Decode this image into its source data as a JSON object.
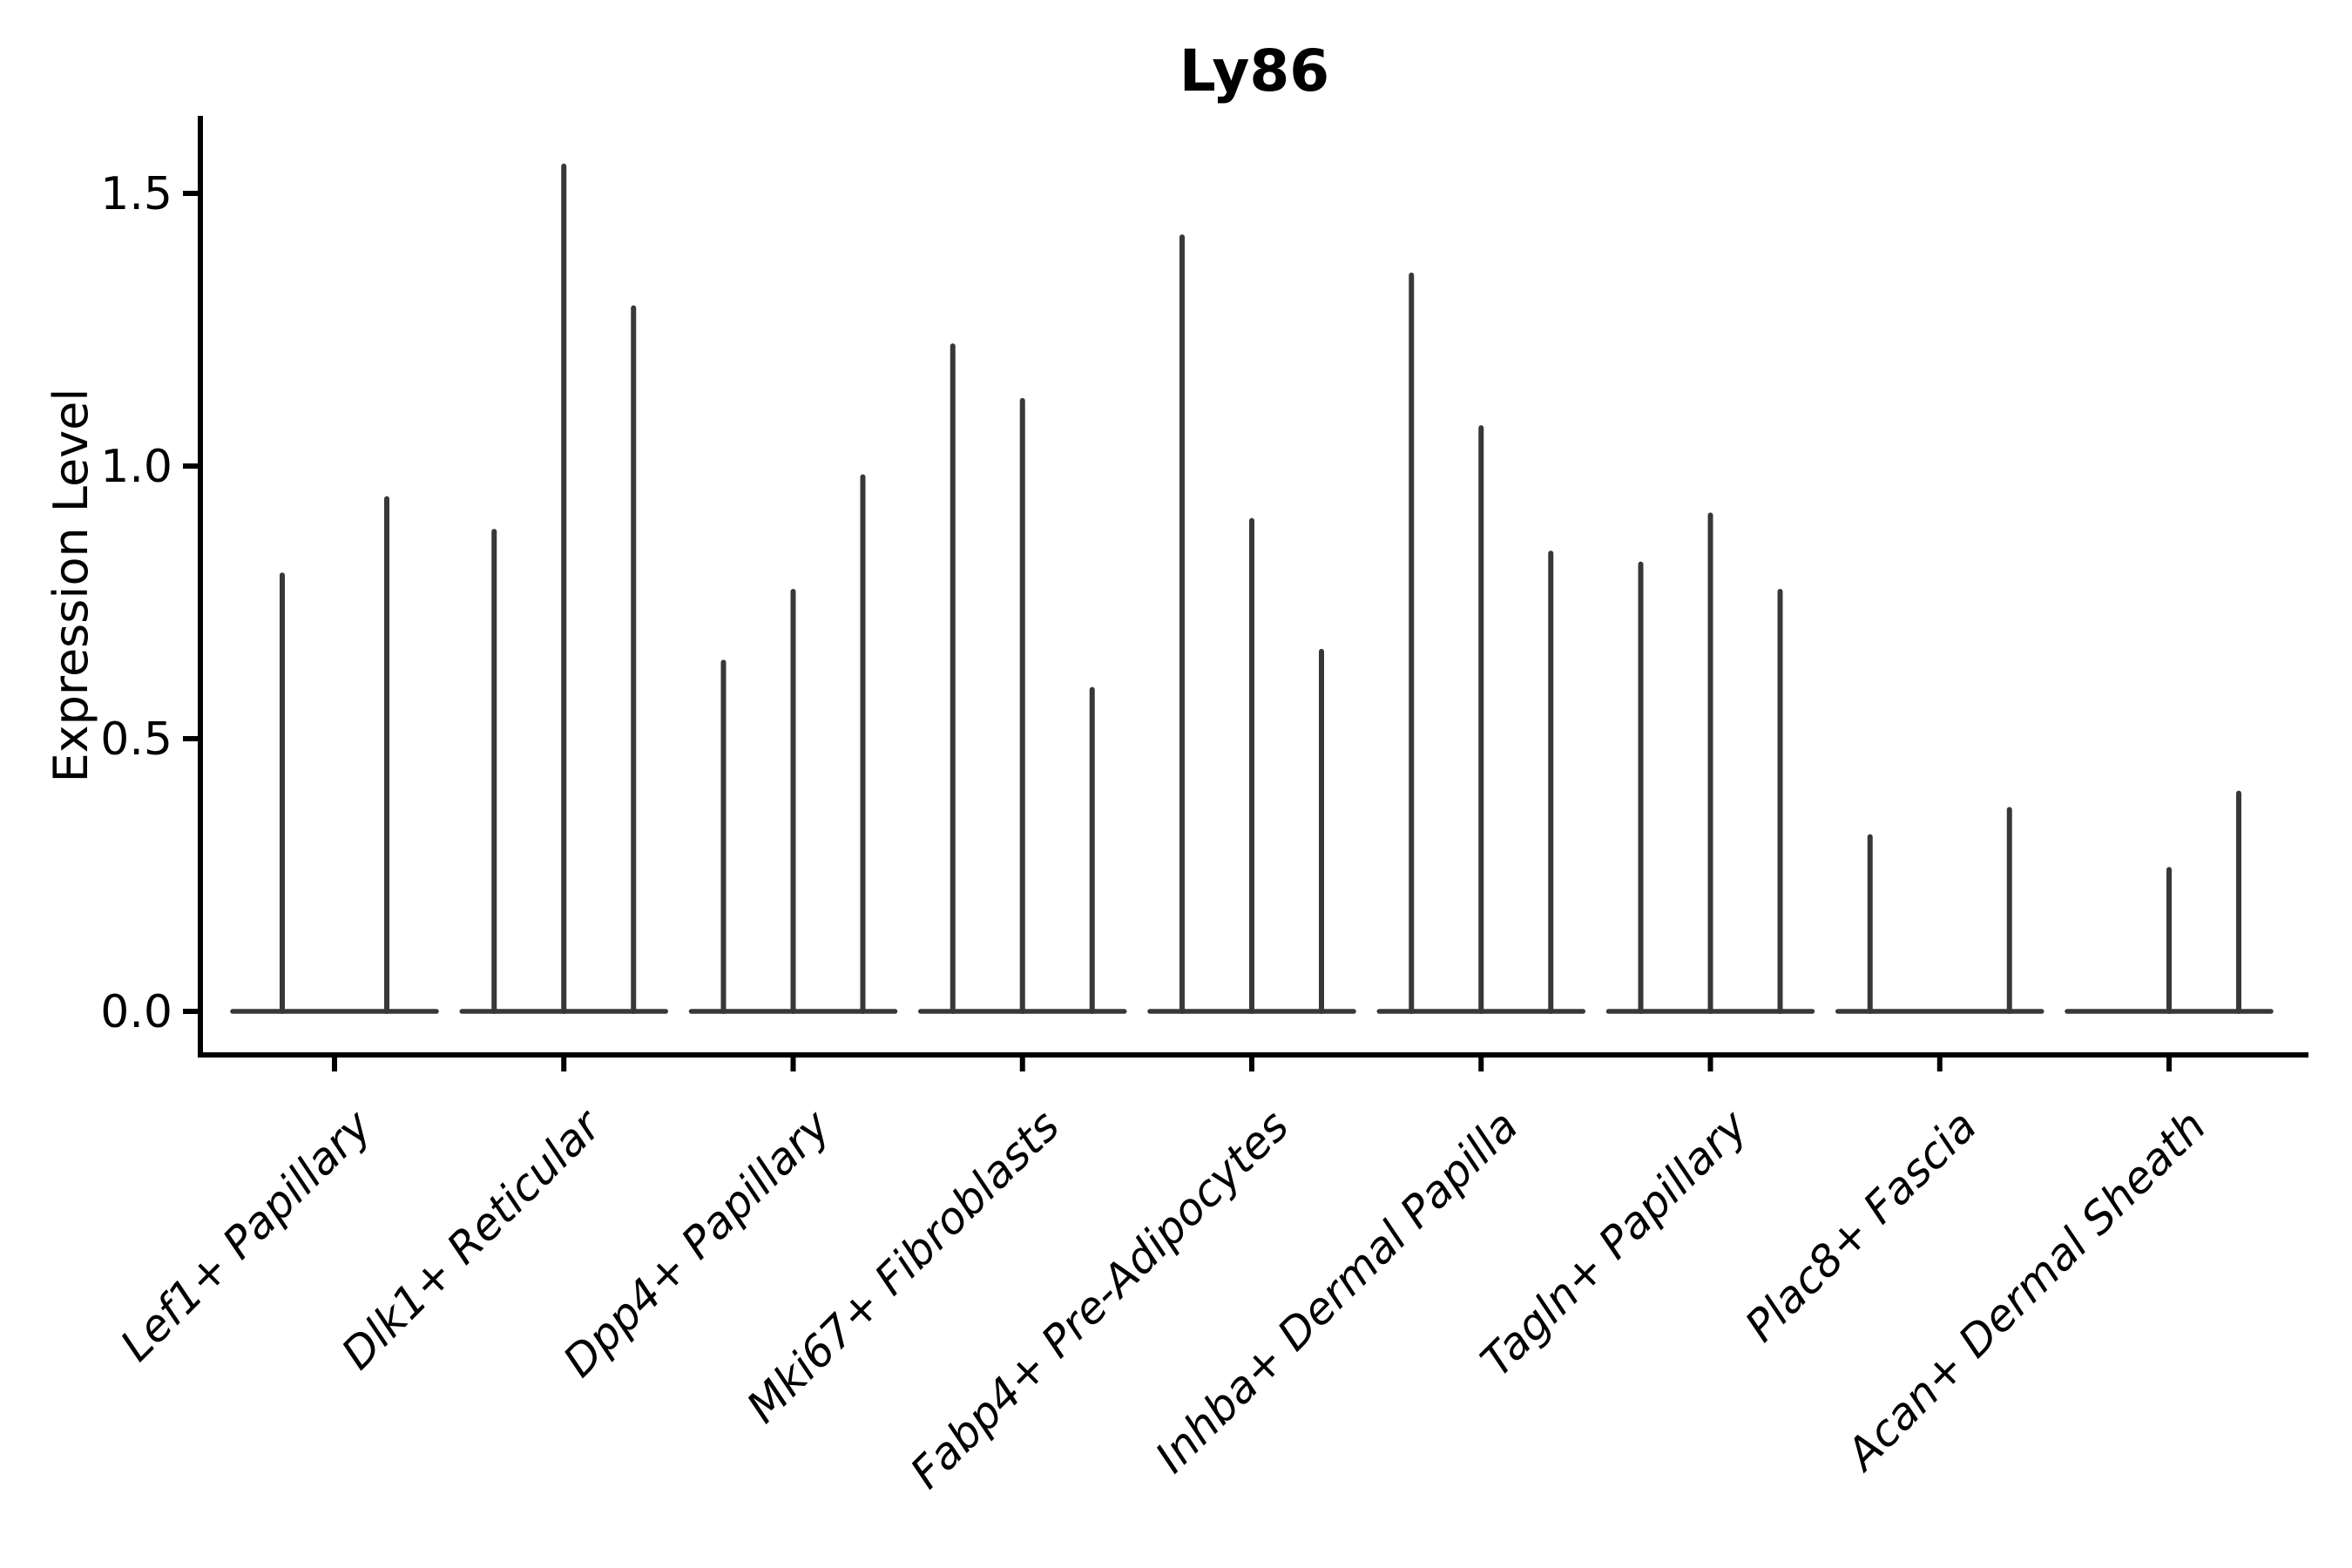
{
  "chart_data": {
    "type": "violin",
    "title": "Ly86",
    "ylabel": "Expression Level",
    "xlabel": "",
    "ylim": [
      -0.08,
      1.66
    ],
    "yticks": [
      0.0,
      0.5,
      1.0,
      1.5
    ],
    "ytick_labels": [
      "0.0",
      "0.5",
      "1.0",
      "1.5"
    ],
    "grid": false,
    "legend": "none",
    "x_tick_label_rotation_deg": 45,
    "x_tick_label_style": "italic",
    "categories": [
      "Lef1+ Papillary",
      "Dlk1+ Reticular",
      "Dpp4+ Papillary",
      "Mki67+ Fibroblasts",
      "Fabp4+ Pre-Adipocytes",
      "Inhba+ Dermal Papilla",
      "Tagln+ Papillary",
      "Plac8+ Fascia",
      "Acan+ Dermal Sheath"
    ],
    "groups": [
      {
        "category": "Lef1+ Papillary",
        "violins": [
          {
            "offset": -60,
            "peak": 0.8
          },
          {
            "offset": 60,
            "peak": 0.94
          }
        ]
      },
      {
        "category": "Dlk1+ Reticular",
        "violins": [
          {
            "offset": -80,
            "peak": 0.88
          },
          {
            "offset": 0,
            "peak": 1.55
          },
          {
            "offset": 80,
            "peak": 1.29
          }
        ]
      },
      {
        "category": "Dpp4+ Papillary",
        "violins": [
          {
            "offset": -80,
            "peak": 0.64
          },
          {
            "offset": 0,
            "peak": 0.77
          },
          {
            "offset": 80,
            "peak": 0.98
          }
        ]
      },
      {
        "category": "Mki67+ Fibroblasts",
        "violins": [
          {
            "offset": -80,
            "peak": 1.22
          },
          {
            "offset": 0,
            "peak": 1.12
          },
          {
            "offset": 80,
            "peak": 0.59
          }
        ]
      },
      {
        "category": "Fabp4+ Pre-Adipocytes",
        "violins": [
          {
            "offset": -80,
            "peak": 1.42
          },
          {
            "offset": 0,
            "peak": 0.9
          },
          {
            "offset": 80,
            "peak": 0.66
          }
        ]
      },
      {
        "category": "Inhba+ Dermal Papilla",
        "violins": [
          {
            "offset": -80,
            "peak": 1.35
          },
          {
            "offset": 0,
            "peak": 1.07
          },
          {
            "offset": 80,
            "peak": 0.84
          }
        ]
      },
      {
        "category": "Tagln+ Papillary",
        "violins": [
          {
            "offset": -80,
            "peak": 0.82
          },
          {
            "offset": 0,
            "peak": 0.91
          },
          {
            "offset": 80,
            "peak": 0.77
          }
        ]
      },
      {
        "category": "Plac8+ Fascia",
        "violins": [
          {
            "offset": -80,
            "peak": 0.32
          },
          {
            "offset": 0,
            "peak": 0.0
          },
          {
            "offset": 80,
            "peak": 0.37
          }
        ]
      },
      {
        "category": "Acan+ Dermal Sheath",
        "violins": [
          {
            "offset": -80,
            "peak": 0.0
          },
          {
            "offset": 0,
            "peak": 0.26
          },
          {
            "offset": 80,
            "peak": 0.4
          }
        ]
      }
    ],
    "colors": {
      "violin": "#383838",
      "axis": "#000000",
      "text": "#000000",
      "background": "#ffffff"
    }
  }
}
